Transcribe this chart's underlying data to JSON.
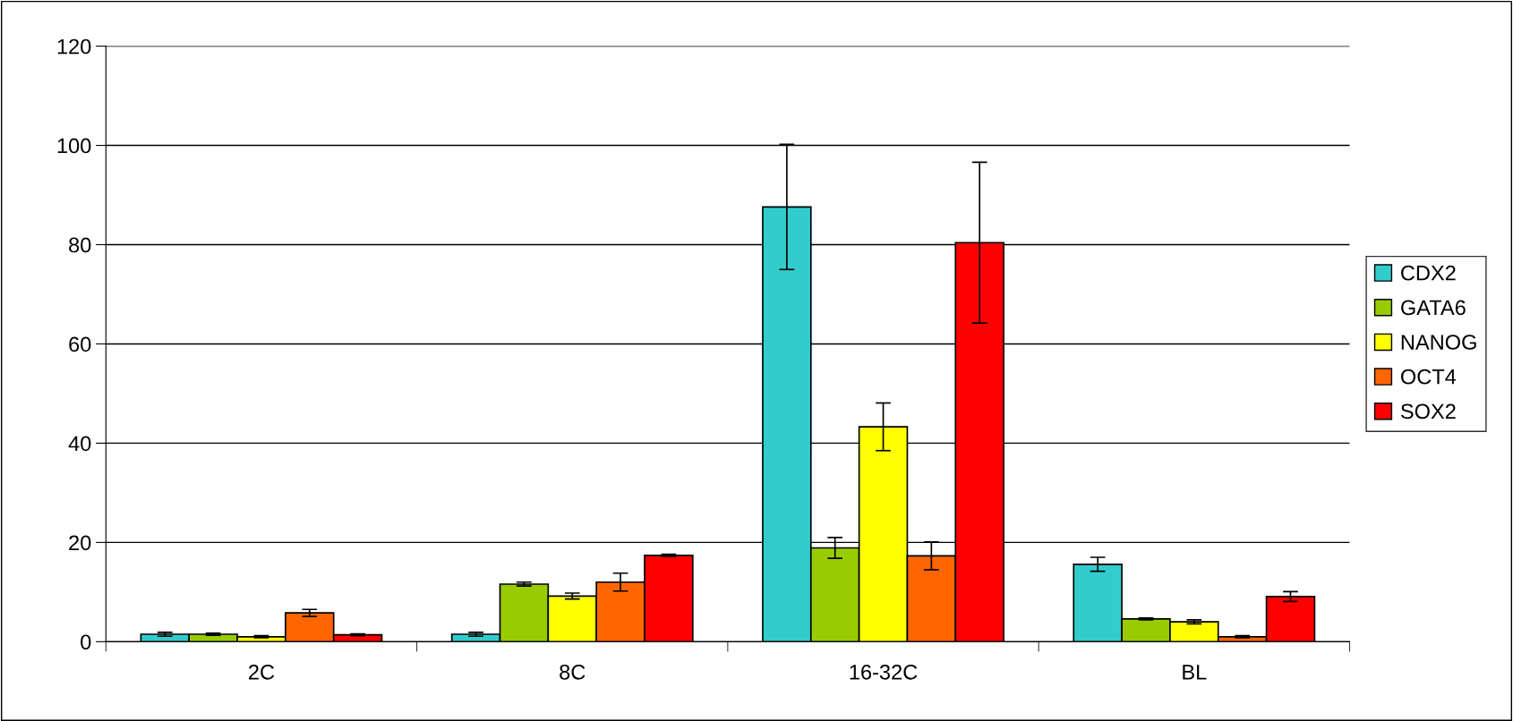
{
  "chart_data": {
    "type": "bar",
    "categories": [
      "2C",
      "8C",
      "16-32C",
      "BL"
    ],
    "series": [
      {
        "name": "CDX2",
        "color": "#33cccc",
        "values": [
          1.5,
          1.5,
          87.6,
          15.6
        ],
        "errors": [
          0.4,
          0.4,
          12.6,
          1.4
        ]
      },
      {
        "name": "GATA6",
        "color": "#99cc00",
        "values": [
          1.5,
          11.6,
          18.9,
          4.6
        ],
        "errors": [
          0.2,
          0.4,
          2.1,
          0.2
        ]
      },
      {
        "name": "NANOG",
        "color": "#ffff00",
        "values": [
          1.0,
          9.2,
          43.3,
          4.0
        ],
        "errors": [
          0.2,
          0.6,
          4.8,
          0.4
        ]
      },
      {
        "name": "OCT4",
        "color": "#ff6600",
        "values": [
          5.8,
          12.0,
          17.3,
          1.0
        ],
        "errors": [
          0.7,
          1.8,
          2.8,
          0.2
        ]
      },
      {
        "name": "SOX2",
        "color": "#ff0000",
        "values": [
          1.4,
          17.4,
          80.4,
          9.1
        ],
        "errors": [
          0.2,
          0.2,
          16.2,
          1.0
        ]
      }
    ],
    "ylim": [
      0,
      120
    ],
    "yticks": [
      0,
      20,
      40,
      60,
      80,
      100,
      120
    ],
    "grid": "y",
    "legend": "right"
  }
}
